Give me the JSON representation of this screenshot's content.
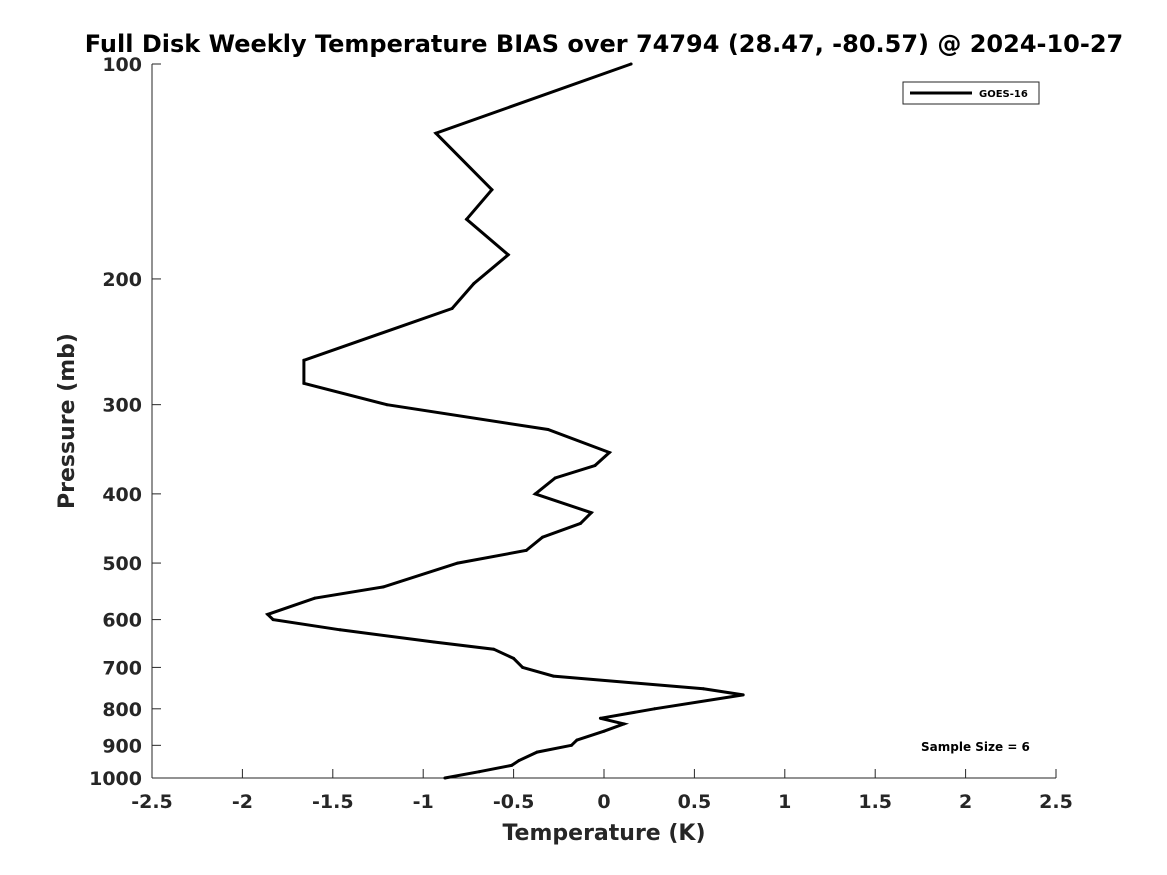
{
  "chart_data": {
    "type": "line",
    "title": "Full Disk Weekly Temperature BIAS over 74794 (28.47, -80.57) @ 2024-10-27",
    "xlabel": "Temperature (K)",
    "ylabel": "Pressure (mb)",
    "xlim": [
      -2.5,
      2.5
    ],
    "ylim": [
      100,
      1000
    ],
    "y_scale": "log",
    "y_reversed": true,
    "x_ticks": [
      "-2.5",
      "-2",
      "-1.5",
      "-1",
      "-0.5",
      "0",
      "0.5",
      "1",
      "1.5",
      "2",
      "2.5"
    ],
    "y_ticks": [
      "100",
      "200",
      "300",
      "400",
      "500",
      "600",
      "700",
      "800",
      "900",
      "1000"
    ],
    "grid": false,
    "legend_position": "top-right",
    "annotation": "Sample Size = 6",
    "series": [
      {
        "name": "GOES-16",
        "color": "#000000",
        "points": [
          {
            "x": 0.15,
            "y": 100
          },
          {
            "x": -0.93,
            "y": 125
          },
          {
            "x": -0.62,
            "y": 150
          },
          {
            "x": -0.76,
            "y": 165
          },
          {
            "x": -0.53,
            "y": 185
          },
          {
            "x": -0.72,
            "y": 203
          },
          {
            "x": -0.84,
            "y": 220
          },
          {
            "x": -1.66,
            "y": 260
          },
          {
            "x": -1.66,
            "y": 280
          },
          {
            "x": -1.2,
            "y": 300
          },
          {
            "x": -0.31,
            "y": 325
          },
          {
            "x": 0.03,
            "y": 350
          },
          {
            "x": -0.05,
            "y": 365
          },
          {
            "x": -0.27,
            "y": 380
          },
          {
            "x": -0.38,
            "y": 400
          },
          {
            "x": -0.07,
            "y": 425
          },
          {
            "x": -0.13,
            "y": 440
          },
          {
            "x": -0.34,
            "y": 460
          },
          {
            "x": -0.43,
            "y": 480
          },
          {
            "x": -0.81,
            "y": 500
          },
          {
            "x": -1.22,
            "y": 540
          },
          {
            "x": -1.6,
            "y": 560
          },
          {
            "x": -1.86,
            "y": 590
          },
          {
            "x": -1.83,
            "y": 600
          },
          {
            "x": -1.46,
            "y": 620
          },
          {
            "x": -0.94,
            "y": 645
          },
          {
            "x": -0.61,
            "y": 660
          },
          {
            "x": -0.5,
            "y": 680
          },
          {
            "x": -0.45,
            "y": 700
          },
          {
            "x": -0.28,
            "y": 720
          },
          {
            "x": 0.55,
            "y": 750
          },
          {
            "x": 0.77,
            "y": 765
          },
          {
            "x": 0.28,
            "y": 800
          },
          {
            "x": -0.02,
            "y": 825
          },
          {
            "x": 0.11,
            "y": 840
          },
          {
            "x": 0.0,
            "y": 860
          },
          {
            "x": -0.15,
            "y": 885
          },
          {
            "x": -0.18,
            "y": 900
          },
          {
            "x": -0.37,
            "y": 920
          },
          {
            "x": -0.47,
            "y": 945
          },
          {
            "x": -0.51,
            "y": 960
          },
          {
            "x": -0.69,
            "y": 980
          },
          {
            "x": -0.88,
            "y": 1000
          }
        ]
      }
    ]
  }
}
